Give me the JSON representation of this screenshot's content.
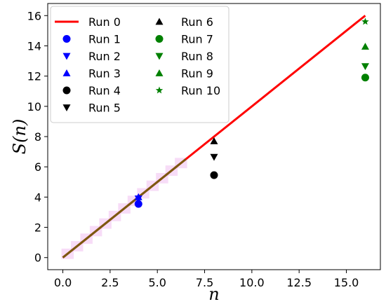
{
  "chart_data": {
    "type": "scatter",
    "title": "",
    "xlabel": "n",
    "ylabel": "S(n)",
    "xlim": [
      -0.8,
      16.8
    ],
    "ylim": [
      -0.8,
      16.8
    ],
    "x_ticks": [
      0.0,
      2.5,
      5.0,
      7.5,
      10.0,
      12.5,
      15.0
    ],
    "x_tick_labels": [
      "0.0",
      "2.5",
      "5.0",
      "7.5",
      "10.0",
      "12.5",
      "15.0"
    ],
    "y_ticks": [
      0,
      2,
      4,
      6,
      8,
      10,
      12,
      14,
      16
    ],
    "y_tick_labels": [
      "0",
      "2",
      "4",
      "6",
      "8",
      "10",
      "12",
      "14",
      "16"
    ],
    "grid": false,
    "legend_position": "top-left",
    "legend_columns": 2,
    "reference_line": {
      "name": "Run 0",
      "x": [
        0,
        16
      ],
      "y": [
        0,
        16
      ],
      "color": "#ff0000"
    },
    "overlay_segment": {
      "x": [
        0,
        6.5
      ],
      "y": [
        0,
        6.5
      ],
      "color": "#7a5a10"
    },
    "series": [
      {
        "name": "Run 1",
        "x": [
          4
        ],
        "y": [
          3.55
        ],
        "color": "#0000ff",
        "marker": "circle"
      },
      {
        "name": "Run 2",
        "x": [
          4
        ],
        "y": [
          3.9
        ],
        "color": "#0000ff",
        "marker": "triangle-down"
      },
      {
        "name": "Run 3",
        "x": [
          4
        ],
        "y": [
          4.0
        ],
        "color": "#0000ff",
        "marker": "triangle-up"
      },
      {
        "name": "Run 4",
        "x": [
          8
        ],
        "y": [
          5.45
        ],
        "color": "#000000",
        "marker": "circle"
      },
      {
        "name": "Run 5",
        "x": [
          8
        ],
        "y": [
          6.65
        ],
        "color": "#000000",
        "marker": "triangle-down"
      },
      {
        "name": "Run 6",
        "x": [
          8
        ],
        "y": [
          7.7
        ],
        "color": "#000000",
        "marker": "triangle-up"
      },
      {
        "name": "Run 7",
        "x": [
          16
        ],
        "y": [
          11.9
        ],
        "color": "#008000",
        "marker": "circle"
      },
      {
        "name": "Run 8",
        "x": [
          16
        ],
        "y": [
          12.65
        ],
        "color": "#008000",
        "marker": "triangle-down"
      },
      {
        "name": "Run 9",
        "x": [
          16
        ],
        "y": [
          13.95
        ],
        "color": "#008000",
        "marker": "triangle-up"
      },
      {
        "name": "Run 10",
        "x": [
          16
        ],
        "y": [
          15.6
        ],
        "color": "#008000",
        "marker": "star"
      }
    ]
  }
}
